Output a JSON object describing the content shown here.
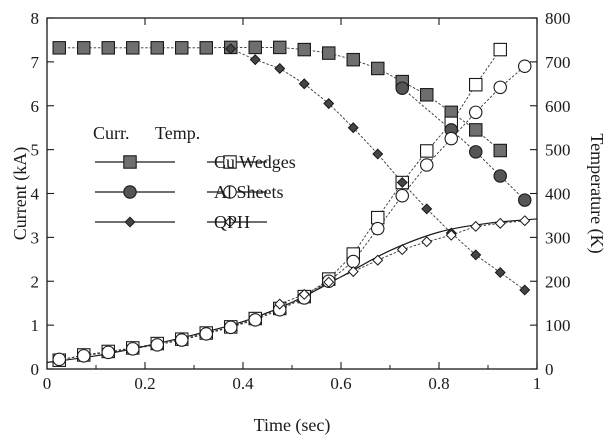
{
  "chart_data": {
    "type": "line",
    "xlabel": "Time (sec)",
    "ylabel_left": "Current (kA)",
    "ylabel_right": "Temperature (K)",
    "xlim": [
      0,
      1
    ],
    "ylim_left": [
      0,
      8
    ],
    "ylim_right": [
      0,
      800
    ],
    "x_ticks": [
      "0",
      "0.2",
      "0.4",
      "0.6",
      "0.8",
      "1"
    ],
    "y_left_ticks": [
      "0",
      "1",
      "2",
      "3",
      "4",
      "5",
      "6",
      "7",
      "8"
    ],
    "y_right_ticks": [
      "0",
      "100",
      "200",
      "300",
      "400",
      "500",
      "600",
      "700",
      "800"
    ],
    "grid": false,
    "legend": {
      "position": "left",
      "header_current": "Curr.",
      "header_temperature": "Temp.",
      "entries": [
        "Cu Wedges",
        "Al Sheets",
        "QPH"
      ]
    },
    "series": [
      {
        "name": "Cu Wedges",
        "quantity": "current",
        "axis": "left",
        "marker": "square-filled",
        "points": [
          [
            0.025,
            7.32
          ],
          [
            0.075,
            7.32
          ],
          [
            0.125,
            7.32
          ],
          [
            0.175,
            7.32
          ],
          [
            0.225,
            7.32
          ],
          [
            0.275,
            7.32
          ],
          [
            0.325,
            7.32
          ],
          [
            0.375,
            7.33
          ],
          [
            0.425,
            7.33
          ],
          [
            0.475,
            7.33
          ],
          [
            0.525,
            7.28
          ],
          [
            0.575,
            7.2
          ],
          [
            0.625,
            7.05
          ],
          [
            0.675,
            6.85
          ],
          [
            0.725,
            6.55
          ],
          [
            0.775,
            6.25
          ],
          [
            0.825,
            5.85
          ],
          [
            0.875,
            5.45
          ],
          [
            0.925,
            4.98
          ]
        ]
      },
      {
        "name": "Cu Wedges",
        "quantity": "temperature",
        "axis": "right",
        "marker": "square-open",
        "points": [
          [
            0.025,
            20
          ],
          [
            0.075,
            32
          ],
          [
            0.125,
            40
          ],
          [
            0.175,
            48
          ],
          [
            0.225,
            58
          ],
          [
            0.275,
            68
          ],
          [
            0.325,
            82
          ],
          [
            0.375,
            96
          ],
          [
            0.425,
            115
          ],
          [
            0.475,
            138
          ],
          [
            0.525,
            165
          ],
          [
            0.575,
            205
          ],
          [
            0.625,
            262
          ],
          [
            0.675,
            345
          ],
          [
            0.725,
            425
          ],
          [
            0.775,
            497
          ],
          [
            0.825,
            560
          ],
          [
            0.875,
            648
          ],
          [
            0.925,
            728
          ]
        ]
      },
      {
        "name": "Al Sheets",
        "quantity": "current",
        "axis": "left",
        "marker": "circle-filled",
        "points": [
          [
            0.725,
            6.4
          ],
          [
            0.825,
            5.45
          ],
          [
            0.875,
            4.95
          ],
          [
            0.925,
            4.4
          ],
          [
            0.975,
            3.85
          ]
        ]
      },
      {
        "name": "Al Sheets",
        "quantity": "temperature",
        "axis": "right",
        "marker": "circle-open",
        "points": [
          [
            0.025,
            22
          ],
          [
            0.075,
            30
          ],
          [
            0.125,
            38
          ],
          [
            0.175,
            46
          ],
          [
            0.225,
            55
          ],
          [
            0.275,
            66
          ],
          [
            0.325,
            80
          ],
          [
            0.375,
            95
          ],
          [
            0.425,
            112
          ],
          [
            0.475,
            135
          ],
          [
            0.525,
            162
          ],
          [
            0.575,
            200
          ],
          [
            0.625,
            245
          ],
          [
            0.675,
            320
          ],
          [
            0.725,
            395
          ],
          [
            0.775,
            465
          ],
          [
            0.825,
            525
          ],
          [
            0.875,
            585
          ],
          [
            0.925,
            642
          ],
          [
            0.975,
            690
          ]
        ]
      },
      {
        "name": "QPH",
        "quantity": "current",
        "axis": "left",
        "marker": "diamond-filled",
        "points": [
          [
            0.375,
            7.3
          ],
          [
            0.425,
            7.05
          ],
          [
            0.475,
            6.85
          ],
          [
            0.525,
            6.5
          ],
          [
            0.575,
            6.05
          ],
          [
            0.625,
            5.5
          ],
          [
            0.675,
            4.9
          ],
          [
            0.725,
            4.25
          ],
          [
            0.775,
            3.65
          ],
          [
            0.825,
            3.1
          ],
          [
            0.875,
            2.6
          ],
          [
            0.925,
            2.2
          ],
          [
            0.975,
            1.8
          ]
        ]
      },
      {
        "name": "QPH",
        "quantity": "temperature",
        "axis": "right",
        "marker": "diamond-open",
        "points": [
          [
            0.475,
            148
          ],
          [
            0.525,
            170
          ],
          [
            0.575,
            198
          ],
          [
            0.625,
            222
          ],
          [
            0.675,
            248
          ],
          [
            0.725,
            272
          ],
          [
            0.775,
            290
          ],
          [
            0.825,
            305
          ],
          [
            0.875,
            325
          ],
          [
            0.925,
            332
          ],
          [
            0.975,
            338
          ]
        ]
      }
    ],
    "qph_temperature_fit": [
      [
        0,
        15
      ],
      [
        0.1,
        30
      ],
      [
        0.2,
        52
      ],
      [
        0.3,
        78
      ],
      [
        0.4,
        108
      ],
      [
        0.5,
        152
      ],
      [
        0.6,
        210
      ],
      [
        0.7,
        270
      ],
      [
        0.8,
        312
      ],
      [
        0.9,
        332
      ],
      [
        1.0,
        342
      ]
    ]
  }
}
